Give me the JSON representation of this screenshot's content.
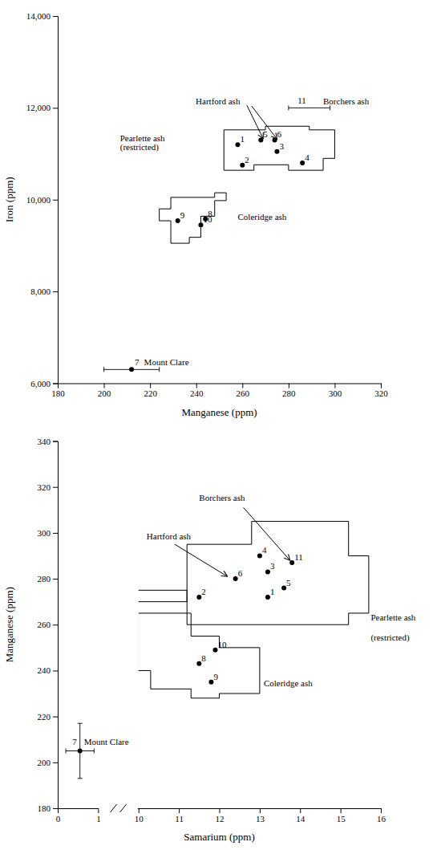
{
  "chart_data": [
    {
      "type": "scatter",
      "xlabel": "Manganese (ppm)",
      "ylabel": "Iron (ppm)",
      "xlim": [
        180,
        320
      ],
      "ylim": [
        6000,
        14000
      ],
      "xticks": [
        180,
        200,
        220,
        240,
        260,
        280,
        300,
        320
      ],
      "yticks": [
        {
          "value": 6000,
          "label": "6,000"
        },
        {
          "value": 8000,
          "label": "8,000"
        },
        {
          "value": 10000,
          "label": "10,000"
        },
        {
          "value": 12000,
          "label": "12,000"
        },
        {
          "value": 14000,
          "label": "14,000"
        }
      ],
      "points": {
        "labels": [
          "1",
          "2",
          "3",
          "4",
          "5",
          "6",
          "8",
          "9",
          "10"
        ],
        "x": [
          258,
          260,
          275,
          286,
          268,
          274,
          244,
          232,
          242
        ],
        "y": [
          11200,
          10750,
          11050,
          10800,
          11300,
          11300,
          9580,
          9540,
          9450
        ]
      },
      "error_points": [
        {
          "label": "7",
          "text": "Mount Clare",
          "x": 212,
          "y": 6300,
          "xerr": 12,
          "marker": "circle"
        },
        {
          "label": "11",
          "x": 289,
          "y": 12000,
          "xerr": 9,
          "marker": "none",
          "align": "right"
        }
      ],
      "polygons": [
        {
          "x": [
            252,
            252,
            270,
            270,
            289,
            289,
            300,
            300,
            295,
            295,
            280,
            280,
            265,
            265,
            252,
            252
          ],
          "y": [
            11520,
            11520,
            11520,
            11600,
            11600,
            11520,
            11520,
            10900,
            10900,
            10640,
            10640,
            10760,
            10760,
            10640,
            10640,
            11520
          ]
        },
        {
          "x": [
            237,
            248,
            248,
            253,
            253,
            248,
            248,
            242,
            242,
            237,
            237,
            229,
            229,
            224,
            224,
            229,
            229,
            237
          ],
          "y": [
            10050,
            10050,
            10150,
            10150,
            9980,
            9980,
            9640,
            9640,
            9180,
            9180,
            9050,
            9050,
            9540,
            9540,
            9800,
            9800,
            10050,
            10050
          ]
        }
      ],
      "annotations": [
        {
          "text": "Hartford ash",
          "x": 259,
          "y": 12080,
          "align": "right"
        },
        {
          "text": "Borchers ash",
          "x": 295,
          "y": 12080
        },
        {
          "text": "Pearlette ash",
          "x": 207,
          "y": 11280
        },
        {
          "text": "(restricted)",
          "x": 207,
          "y": 11080
        },
        {
          "text": "Coleridge ash",
          "x": 258,
          "y": 9560
        }
      ],
      "arrows": [
        {
          "x": [
            262,
            269
          ],
          "y": [
            12050,
            11330
          ]
        },
        {
          "x": [
            264,
            275
          ],
          "y": [
            12040,
            11320
          ]
        }
      ]
    },
    {
      "type": "scatter",
      "xlabel": "Samarium (ppm)",
      "ylabel": "Manganese (ppm)",
      "xlim": [
        0,
        16
      ],
      "xbreak": [
        1,
        10
      ],
      "ylim": [
        180,
        340
      ],
      "xticks": [
        0,
        1,
        10,
        11,
        12,
        13,
        14,
        15,
        16
      ],
      "yticks": [
        180,
        200,
        220,
        240,
        260,
        280,
        300,
        320,
        340
      ],
      "points": {
        "labels": [
          "1",
          "2",
          "3",
          "4",
          "5",
          "6",
          "8",
          "9",
          "10",
          "11"
        ],
        "x": [
          13.2,
          11.5,
          13.2,
          13.0,
          13.6,
          12.4,
          11.5,
          11.8,
          11.9,
          13.8
        ],
        "y": [
          272,
          272,
          283,
          290,
          276,
          280,
          243,
          235,
          249,
          287
        ]
      },
      "error_points": [
        {
          "label": "7",
          "text": "Mount Clare",
          "x": 0.55,
          "y": 205,
          "xerr": 0.35,
          "yerr": 12,
          "marker": "circle",
          "align": "right"
        }
      ],
      "polygons": [
        {
          "x": [
            11.2,
            11.2,
            9.5,
            9.5,
            9.5,
            11.2,
            11.2,
            12.8,
            12.8,
            15.2,
            15.2,
            15.7,
            15.7,
            15.2,
            15.2,
            11.2,
            11.2
          ],
          "y": [
            275,
            270,
            270,
            275,
            275,
            275,
            295,
            295,
            305,
            305,
            290,
            290,
            265,
            265,
            260,
            260,
            275
          ]
        },
        {
          "x": [
            9.8,
            9.8,
            10.3,
            10.3,
            11.3,
            11.3,
            12.0,
            12.0,
            13.0,
            13.0,
            12.0,
            12.0,
            11.3,
            11.3,
            9.8
          ],
          "y": [
            265,
            240,
            240,
            232,
            232,
            228,
            228,
            230,
            230,
            250,
            250,
            255,
            255,
            265,
            265
          ]
        }
      ],
      "annotations": [
        {
          "text": "Hartford ash",
          "x": 10.2,
          "y": 297
        },
        {
          "text": "Borchers ash",
          "x": 11.5,
          "y": 314
        },
        {
          "text": "Pearlette ash",
          "x": 15.75,
          "y": 262
        },
        {
          "text": "(restricted)",
          "x": 15.75,
          "y": 253
        },
        {
          "text": "Coleridge ash",
          "x": 13.1,
          "y": 233
        }
      ],
      "arrows": [
        {
          "x": [
            10.9,
            12.2
          ],
          "y": [
            295,
            281
          ]
        },
        {
          "x": [
            12.6,
            13.75
          ],
          "y": [
            311,
            288
          ]
        }
      ]
    }
  ]
}
